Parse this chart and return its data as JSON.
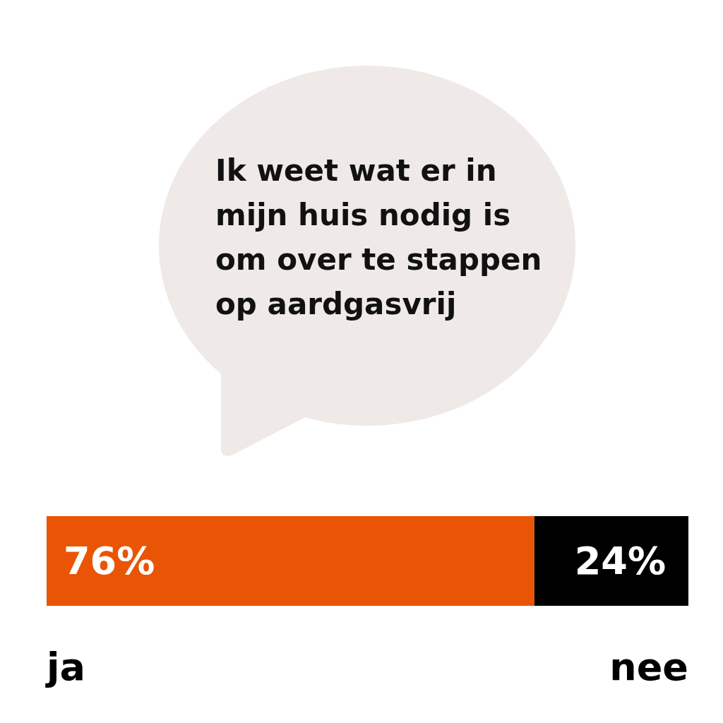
{
  "chart_data": {
    "type": "bar",
    "orientation": "horizontal",
    "stacked": true,
    "title": "Ik weet wat er in mijn huis nodig is om over te stappen op aardgasvrij",
    "categories": [
      null
    ],
    "xlim": [
      0,
      100
    ],
    "series": [
      {
        "name": "ja",
        "color": "#e95504",
        "values": [
          76
        ],
        "value_labels": [
          "76%"
        ]
      },
      {
        "name": "nee",
        "color": "#000000",
        "values": [
          24
        ],
        "value_labels": [
          "24%"
        ]
      }
    ]
  }
}
